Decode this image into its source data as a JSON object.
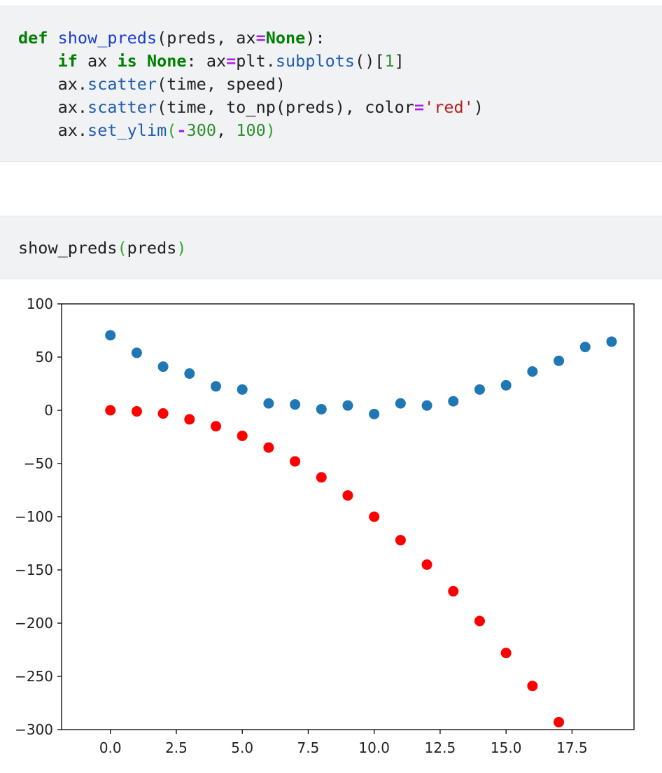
{
  "cells": [
    {
      "lines": [
        [
          {
            "t": "def",
            "c": "kw"
          },
          {
            "t": " "
          },
          {
            "t": "show_preds",
            "c": "fn"
          },
          {
            "t": "(preds, ax"
          },
          {
            "t": "=",
            "c": "op"
          },
          {
            "t": "None",
            "c": "kw"
          },
          {
            "t": "):"
          }
        ],
        [
          {
            "t": "    "
          },
          {
            "t": "if",
            "c": "kw"
          },
          {
            "t": " ax "
          },
          {
            "t": "is",
            "c": "kw"
          },
          {
            "t": " "
          },
          {
            "t": "None",
            "c": "kw"
          },
          {
            "t": ": ax"
          },
          {
            "t": "=",
            "c": "op"
          },
          {
            "t": "plt."
          },
          {
            "t": "subplots",
            "c": "meth"
          },
          {
            "t": "()["
          },
          {
            "t": "1",
            "c": "num"
          },
          {
            "t": "]"
          }
        ],
        [
          {
            "t": "    ax."
          },
          {
            "t": "scatter",
            "c": "meth"
          },
          {
            "t": "(time, speed)"
          }
        ],
        [
          {
            "t": "    ax."
          },
          {
            "t": "scatter",
            "c": "meth"
          },
          {
            "t": "(time, to_np(preds), color"
          },
          {
            "t": "=",
            "c": "op"
          },
          {
            "t": "'red'",
            "c": "str"
          },
          {
            "t": ")"
          }
        ],
        [
          {
            "t": "    ax."
          },
          {
            "t": "set_ylim",
            "c": "meth"
          },
          {
            "t": "(",
            "c": "paren"
          },
          {
            "t": "-",
            "c": "op"
          },
          {
            "t": "300",
            "c": "num"
          },
          {
            "t": ", "
          },
          {
            "t": "100",
            "c": "num"
          },
          {
            "t": ")",
            "c": "paren"
          }
        ]
      ]
    },
    {
      "lines": [
        [
          {
            "t": "show_preds"
          },
          {
            "t": "(",
            "c": "paren"
          },
          {
            "t": "preds"
          },
          {
            "t": ")",
            "c": "paren"
          }
        ]
      ]
    }
  ],
  "chart_data": {
    "type": "scatter",
    "xlim": [
      -1.85,
      19.85
    ],
    "ylim": [
      -300,
      100
    ],
    "x_ticks": [
      0.0,
      2.5,
      5.0,
      7.5,
      10.0,
      12.5,
      15.0,
      17.5
    ],
    "x_tick_labels": [
      "0.0",
      "2.5",
      "5.0",
      "7.5",
      "10.0",
      "12.5",
      "15.0",
      "17.5"
    ],
    "y_ticks": [
      100,
      50,
      0,
      -50,
      -100,
      -150,
      -200,
      -250,
      -300
    ],
    "y_tick_labels": [
      "100",
      "50",
      "0",
      "−50",
      "−100",
      "−150",
      "−200",
      "−250",
      "−300"
    ],
    "grid": false,
    "series": [
      {
        "color": "#1f77b4",
        "x": [
          0,
          1,
          2,
          3,
          4,
          5,
          6,
          7,
          8,
          9,
          10,
          11,
          12,
          13,
          14,
          15,
          16,
          17,
          18,
          19
        ],
        "y": [
          70.5,
          54,
          41,
          34.5,
          22.5,
          19.5,
          6.5,
          5.5,
          1,
          4.5,
          -3.5,
          6.5,
          4.5,
          8.5,
          19.5,
          23.5,
          36.5,
          46.5,
          59.5,
          64.5
        ]
      },
      {
        "color": "#ff0000",
        "x": [
          0,
          1,
          2,
          3,
          4,
          5,
          6,
          7,
          8,
          9,
          10,
          11,
          12,
          13,
          14,
          15,
          16,
          17
        ],
        "y": [
          0,
          -1,
          -3,
          -8.5,
          -15,
          -24,
          -35,
          -48,
          -63,
          -80,
          -100,
          -122,
          -145,
          -170,
          -198,
          -228,
          -259,
          -293
        ]
      }
    ]
  }
}
